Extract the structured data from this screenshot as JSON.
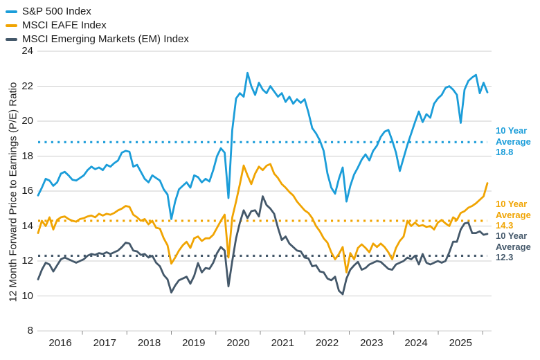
{
  "legend": {
    "items": [
      {
        "label": "S&P 500 Index",
        "color": "#1B9DD9"
      },
      {
        "label": "MSCI EAFE Index",
        "color": "#F0A402"
      },
      {
        "label": "MSCI Emerging Markets (EM) Index",
        "color": "#44586A"
      }
    ]
  },
  "y_axis": {
    "title": "12 Month Forward Price to Earnings (P/E) Ratio",
    "ticks": [
      8,
      10,
      12,
      14,
      16,
      18,
      20,
      22,
      24
    ],
    "range": [
      8,
      24
    ]
  },
  "x_axis": {
    "labels": [
      "2016",
      "2017",
      "2018",
      "2019",
      "2020",
      "2021",
      "2022",
      "2023",
      "2024",
      "2025"
    ]
  },
  "annotations": [
    {
      "line1": "10 Year",
      "line2": "Average",
      "value": "18.8",
      "color": "#1B9DD9"
    },
    {
      "line1": "10 Year",
      "line2": "Average",
      "value": "14.3",
      "color": "#F0A402"
    },
    {
      "line1": "10 Year",
      "line2": "Average",
      "value": "12.3",
      "color": "#44586A"
    }
  ],
  "chart_data": {
    "type": "line",
    "x_start": "2016-01",
    "x_end": "2025-11",
    "frequency": "monthly",
    "ylabel": "12 Month Forward Price to Earnings (P/E) Ratio",
    "ylim": [
      8,
      24
    ],
    "grid": "horizontal",
    "legend_position": "top-left",
    "series": [
      {
        "name": "S&P 500 Index",
        "color": "#1B9DD9",
        "ten_year_average": 18.8,
        "values": [
          15.75,
          16.2,
          16.7,
          16.6,
          16.3,
          16.5,
          17.0,
          17.1,
          16.9,
          16.65,
          16.6,
          16.75,
          16.9,
          17.2,
          17.4,
          17.25,
          17.35,
          17.2,
          17.5,
          17.4,
          17.6,
          17.75,
          18.2,
          18.3,
          18.25,
          17.4,
          17.5,
          17.1,
          16.7,
          16.5,
          16.9,
          16.75,
          16.6,
          16.1,
          15.8,
          14.4,
          15.4,
          16.1,
          16.3,
          16.5,
          16.2,
          16.9,
          16.8,
          16.5,
          16.7,
          16.55,
          17.2,
          18.0,
          18.45,
          18.2,
          15.6,
          19.5,
          21.3,
          21.6,
          21.4,
          22.76,
          22.0,
          21.5,
          22.2,
          21.8,
          21.6,
          22.0,
          21.7,
          21.4,
          21.6,
          21.1,
          21.4,
          21.0,
          21.25,
          21.05,
          21.25,
          20.5,
          19.6,
          19.3,
          18.9,
          18.3,
          17.0,
          16.2,
          15.85,
          16.7,
          17.35,
          15.4,
          16.3,
          16.95,
          17.35,
          17.8,
          18.1,
          17.75,
          18.3,
          18.6,
          19.1,
          19.4,
          19.5,
          18.9,
          18.2,
          17.15,
          17.9,
          18.65,
          19.3,
          19.95,
          20.55,
          19.95,
          20.4,
          20.2,
          21.0,
          21.3,
          21.5,
          21.9,
          22.0,
          21.8,
          21.5,
          19.9,
          21.8,
          22.3,
          22.5,
          22.65,
          21.6,
          22.2,
          21.65
        ]
      },
      {
        "name": "MSCI EAFE Index",
        "color": "#F0A402",
        "ten_year_average": 14.3,
        "values": [
          13.6,
          14.3,
          14.0,
          14.5,
          13.8,
          14.35,
          14.5,
          14.55,
          14.4,
          14.3,
          14.25,
          14.4,
          14.45,
          14.55,
          14.6,
          14.5,
          14.7,
          14.6,
          14.7,
          14.65,
          14.75,
          14.9,
          15.0,
          15.15,
          15.1,
          14.65,
          14.5,
          14.3,
          14.4,
          14.1,
          14.3,
          13.9,
          13.85,
          13.3,
          12.9,
          11.85,
          12.2,
          12.6,
          12.9,
          13.1,
          12.75,
          13.3,
          13.4,
          13.15,
          13.3,
          13.3,
          13.5,
          13.9,
          14.3,
          14.65,
          12.2,
          14.5,
          15.4,
          16.4,
          17.46,
          16.9,
          16.4,
          17.0,
          17.4,
          17.2,
          17.45,
          17.55,
          17.0,
          16.75,
          16.4,
          16.2,
          15.95,
          15.75,
          15.4,
          15.15,
          14.9,
          14.75,
          14.45,
          14.0,
          13.7,
          13.3,
          13.05,
          12.5,
          12.1,
          12.4,
          12.8,
          11.35,
          12.45,
          12.1,
          12.75,
          12.95,
          12.75,
          12.5,
          13.0,
          12.8,
          13.0,
          12.8,
          12.5,
          12.1,
          12.75,
          13.15,
          13.4,
          14.3,
          14.0,
          14.2,
          14.0,
          14.05,
          13.95,
          14.0,
          13.8,
          14.2,
          14.35,
          14.15,
          14.0,
          14.5,
          14.35,
          14.75,
          14.85,
          15.05,
          15.15,
          15.3,
          15.5,
          15.7,
          16.45
        ]
      },
      {
        "name": "MSCI Emerging Markets (EM) Index",
        "color": "#44586A",
        "ten_year_average": 12.3,
        "values": [
          10.95,
          11.5,
          11.9,
          11.8,
          11.4,
          11.75,
          12.1,
          12.2,
          12.1,
          12.0,
          11.9,
          12.0,
          12.1,
          12.3,
          12.4,
          12.35,
          12.45,
          12.4,
          12.5,
          12.4,
          12.5,
          12.6,
          12.8,
          13.05,
          13.0,
          12.6,
          12.55,
          12.35,
          12.4,
          12.2,
          12.3,
          11.9,
          11.7,
          11.2,
          10.95,
          10.2,
          10.6,
          10.9,
          11.0,
          11.1,
          10.7,
          11.15,
          11.88,
          11.35,
          11.6,
          11.55,
          11.9,
          12.45,
          12.8,
          12.6,
          10.55,
          12.0,
          13.3,
          14.2,
          14.9,
          14.45,
          14.85,
          14.9,
          14.55,
          15.7,
          15.2,
          15.0,
          14.7,
          13.9,
          13.2,
          13.4,
          13.0,
          12.8,
          12.6,
          12.55,
          12.2,
          12.15,
          11.7,
          11.75,
          11.4,
          11.35,
          11.0,
          10.9,
          11.1,
          10.3,
          10.1,
          11.0,
          11.5,
          11.75,
          11.95,
          11.5,
          11.6,
          11.8,
          11.9,
          12.0,
          11.95,
          11.75,
          11.55,
          11.5,
          11.8,
          11.9,
          12.0,
          12.2,
          12.1,
          12.3,
          11.8,
          12.4,
          11.9,
          11.8,
          11.9,
          12.0,
          11.9,
          12.0,
          12.5,
          13.1,
          13.1,
          13.8,
          14.15,
          14.2,
          13.6,
          13.6,
          13.7,
          13.5,
          13.55
        ]
      }
    ]
  },
  "style": {
    "grid_color": "#cccccc",
    "tick_color": "#8a8a8a",
    "text_color": "#1f1f1f"
  }
}
